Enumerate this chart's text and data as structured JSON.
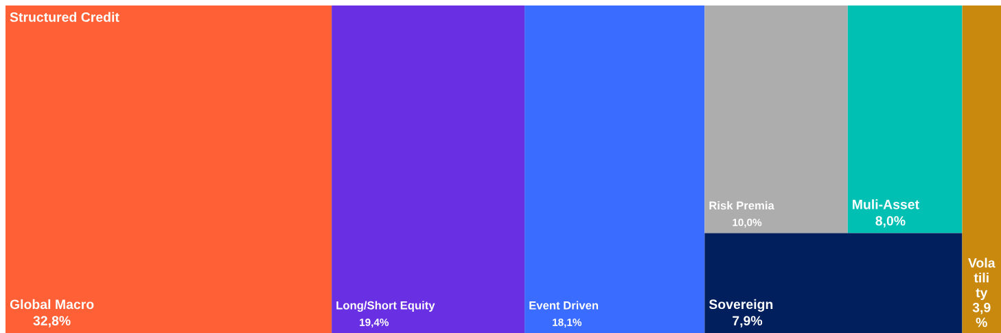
{
  "chart_data": {
    "type": "other",
    "categories": [
      "Global Macro",
      "Long/Short Equity",
      "Event Driven",
      "Risk Premia",
      "Muli-Asset",
      "Sovereign",
      "Volatility"
    ],
    "values": [
      32.8,
      19.4,
      18.1,
      10.0,
      8.0,
      7.9,
      3.9
    ],
    "value_labels": [
      "32,8%",
      "19,4%",
      "18,1%",
      "10,0%",
      "8,0%",
      "7,9%",
      "3,9%"
    ],
    "colors": [
      "#ff6035",
      "#6930e3",
      "#3a6cff",
      "#adadad",
      "#00bfb3",
      "#001f5c",
      "#c9890f"
    ],
    "annotations": [
      "Structured Credit"
    ]
  }
}
